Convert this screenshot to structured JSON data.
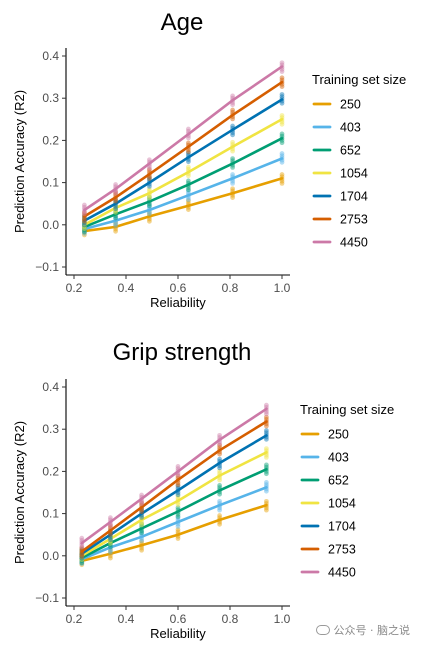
{
  "chart_data": [
    {
      "type": "scatter",
      "title": "Age",
      "xlabel": "Reliability",
      "ylabel": "Prediction Accuracy (R2)",
      "xlim": [
        0.2,
        1.0
      ],
      "ylim": [
        -0.1,
        0.4
      ],
      "xticks": [
        0.2,
        0.4,
        0.6,
        0.8,
        1.0
      ],
      "xtick_labels": [
        "0.2",
        "0.4",
        "0.6",
        "0.8",
        "1.0"
      ],
      "yticks": [
        -0.1,
        0.0,
        0.1,
        0.2,
        0.3,
        0.4
      ],
      "ytick_labels": [
        "−0.1",
        "0.0",
        "0.1",
        "0.2",
        "0.3",
        "0.4"
      ],
      "legend_title": "Training set size",
      "legend_placement": "right",
      "grid": false,
      "x": [
        0.24,
        0.36,
        0.49,
        0.64,
        0.81,
        1.0
      ],
      "series": [
        {
          "name": "250",
          "color": "#E69F00",
          "values": [
            -0.015,
            -0.005,
            0.02,
            0.045,
            0.075,
            0.11
          ]
        },
        {
          "name": "403",
          "color": "#56B4E9",
          "values": [
            -0.01,
            0.01,
            0.035,
            0.07,
            0.11,
            0.157
          ]
        },
        {
          "name": "652",
          "color": "#009E73",
          "values": [
            -0.005,
            0.025,
            0.055,
            0.095,
            0.145,
            0.205
          ]
        },
        {
          "name": "1054",
          "color": "#F0E442",
          "values": [
            0.0,
            0.04,
            0.075,
            0.125,
            0.185,
            0.25
          ]
        },
        {
          "name": "1704",
          "color": "#0072B2",
          "values": [
            0.01,
            0.05,
            0.1,
            0.16,
            0.225,
            0.297
          ]
        },
        {
          "name": "2753",
          "color": "#D55E00",
          "values": [
            0.02,
            0.065,
            0.12,
            0.185,
            0.26,
            0.338
          ]
        },
        {
          "name": "4450",
          "color": "#CC79A7",
          "values": [
            0.035,
            0.085,
            0.145,
            0.215,
            0.295,
            0.375
          ]
        }
      ]
    },
    {
      "type": "scatter",
      "title": "Grip strength",
      "xlabel": "Reliability",
      "ylabel": "Prediction Accuracy (R2)",
      "xlim": [
        0.2,
        1.0
      ],
      "ylim": [
        -0.1,
        0.4
      ],
      "xticks": [
        0.2,
        0.4,
        0.6,
        0.8,
        1.0
      ],
      "xtick_labels": [
        "0.2",
        "0.4",
        "0.6",
        "0.8",
        "1.0"
      ],
      "yticks": [
        -0.1,
        0.0,
        0.1,
        0.2,
        0.3,
        0.4
      ],
      "ytick_labels": [
        "−0.1",
        "0.0",
        "0.1",
        "0.2",
        "0.3",
        "0.4"
      ],
      "legend_title": "Training set size",
      "legend_placement": "right",
      "grid": false,
      "x": [
        0.23,
        0.34,
        0.46,
        0.6,
        0.76,
        0.94
      ],
      "series": [
        {
          "name": "250",
          "color": "#E69F00",
          "values": [
            -0.012,
            0.005,
            0.025,
            0.05,
            0.085,
            0.12
          ]
        },
        {
          "name": "403",
          "color": "#56B4E9",
          "values": [
            -0.008,
            0.02,
            0.045,
            0.08,
            0.12,
            0.162
          ]
        },
        {
          "name": "652",
          "color": "#009E73",
          "values": [
            -0.005,
            0.03,
            0.065,
            0.105,
            0.155,
            0.205
          ]
        },
        {
          "name": "1054",
          "color": "#F0E442",
          "values": [
            0.0,
            0.04,
            0.085,
            0.13,
            0.19,
            0.245
          ]
        },
        {
          "name": "1704",
          "color": "#0072B2",
          "values": [
            0.005,
            0.05,
            0.1,
            0.155,
            0.22,
            0.285
          ]
        },
        {
          "name": "2753",
          "color": "#D55E00",
          "values": [
            0.01,
            0.06,
            0.115,
            0.18,
            0.25,
            0.318
          ]
        },
        {
          "name": "4450",
          "color": "#CC79A7",
          "values": [
            0.03,
            0.08,
            0.135,
            0.2,
            0.275,
            0.348
          ]
        }
      ]
    }
  ],
  "watermark": {
    "text": "公众号 · 脑之说"
  }
}
